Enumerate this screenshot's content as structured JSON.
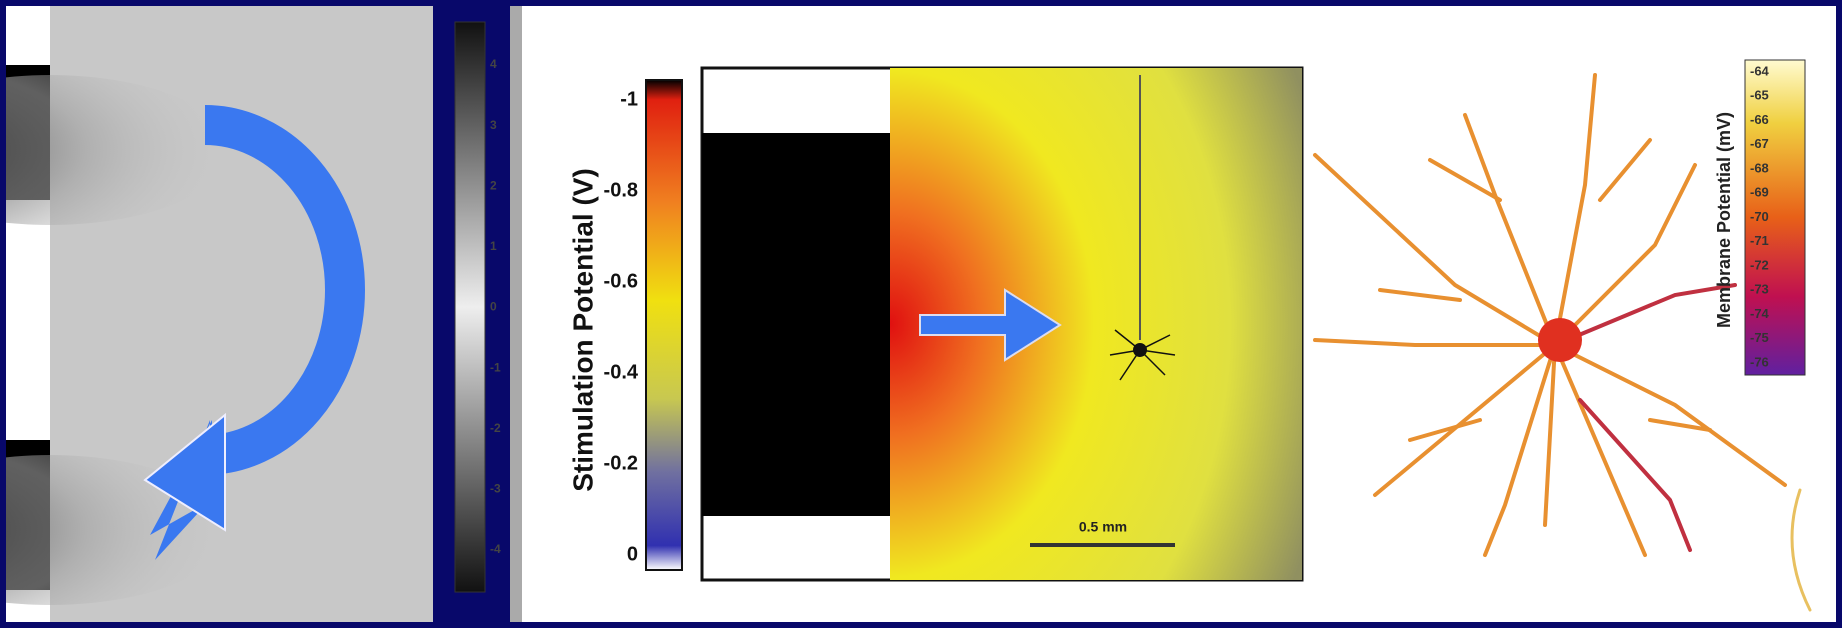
{
  "left_panel": {
    "colorbar_ticks": [
      "4",
      "3",
      "2",
      "1",
      "0",
      "-1",
      "-2",
      "-3",
      "-4"
    ]
  },
  "middle_panel": {
    "colorbar_label": "Stimulation Potential (V)",
    "colorbar_ticks": [
      "-1",
      "-0.8",
      "-0.6",
      "-0.4",
      "-0.2",
      "0"
    ],
    "scale_bar": "0.5 mm"
  },
  "right_panel": {
    "colorbar_label": "Membrane Potential (mV)",
    "colorbar_ticks": [
      "-64",
      "-65",
      "-66",
      "-67",
      "-68",
      "-69",
      "-70",
      "-71",
      "-72",
      "-73",
      "-74",
      "-75",
      "-76"
    ]
  }
}
